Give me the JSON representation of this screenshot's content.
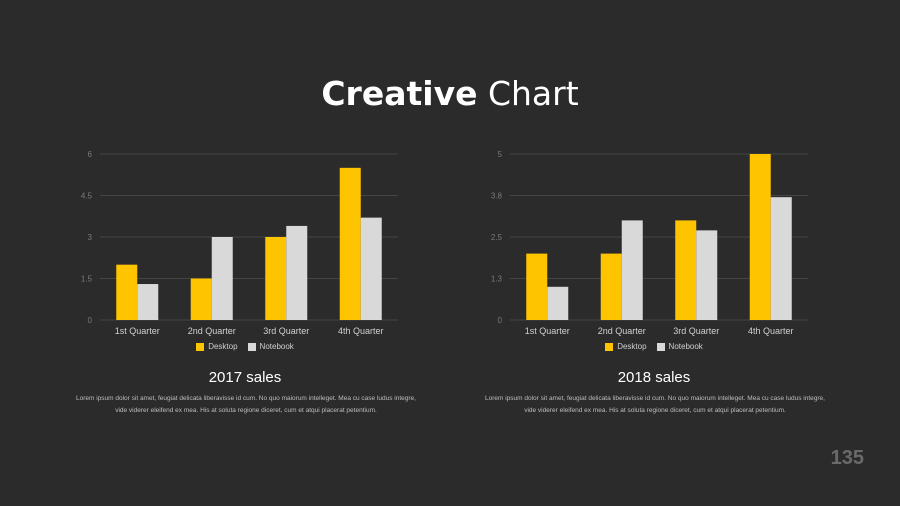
{
  "header": {
    "title_bold": "Creative",
    "title_light": "Chart"
  },
  "colors": {
    "desktop": "#ffc400",
    "notebook": "#d9d9d9",
    "grid": "#454545",
    "tick": "#7a7a7a",
    "label": "#d0d0d0"
  },
  "chart_data": [
    {
      "type": "bar",
      "categories": [
        "1st Quarter",
        "2nd Quarter",
        "3rd Quarter",
        "4th Quarter"
      ],
      "series": [
        {
          "name": "Desktop",
          "values": [
            2,
            1.5,
            3,
            5.5
          ]
        },
        {
          "name": "Notebook",
          "values": [
            1.3,
            3,
            3.4,
            3.7
          ]
        }
      ],
      "yticks": [
        "0",
        "1.5",
        "3",
        "4.5",
        "6"
      ],
      "ylim": [
        0,
        6
      ],
      "legend": "bottom",
      "grid": true
    },
    {
      "type": "bar",
      "categories": [
        "1st Quarter",
        "2nd Quarter",
        "3rd Quarter",
        "4th Quarter"
      ],
      "series": [
        {
          "name": "Desktop",
          "values": [
            2,
            2,
            3,
            5
          ]
        },
        {
          "name": "Notebook",
          "values": [
            1,
            3,
            2.7,
            3.7
          ]
        }
      ],
      "yticks": [
        "0",
        "1.3",
        "2.5",
        "3.8",
        "5"
      ],
      "ylim": [
        0,
        5
      ],
      "legend": "bottom",
      "grid": true
    }
  ],
  "panels": [
    {
      "subtitle": "2017 sales",
      "legend_desktop": "Desktop",
      "legend_notebook": "Notebook",
      "body": "Lorem ipsum dolor sit amet, feugiat delicata liberavisse id cum. No quo maiorum intelleget. Mea cu case ludus integre, vide viderer eleifend ex mea. His at soluta regione diceret, cum et atqui placerat petentium."
    },
    {
      "subtitle": "2018 sales",
      "legend_desktop": "Desktop",
      "legend_notebook": "Notebook",
      "body": "Lorem ipsum dolor sit amet, feugiat delicata liberavisse id cum. No quo maiorum intelleget. Mea cu case ludus integre, vide viderer eleifend ex mea. His at soluta regione diceret, cum et atqui placerat petentium."
    }
  ],
  "page_number": "135"
}
